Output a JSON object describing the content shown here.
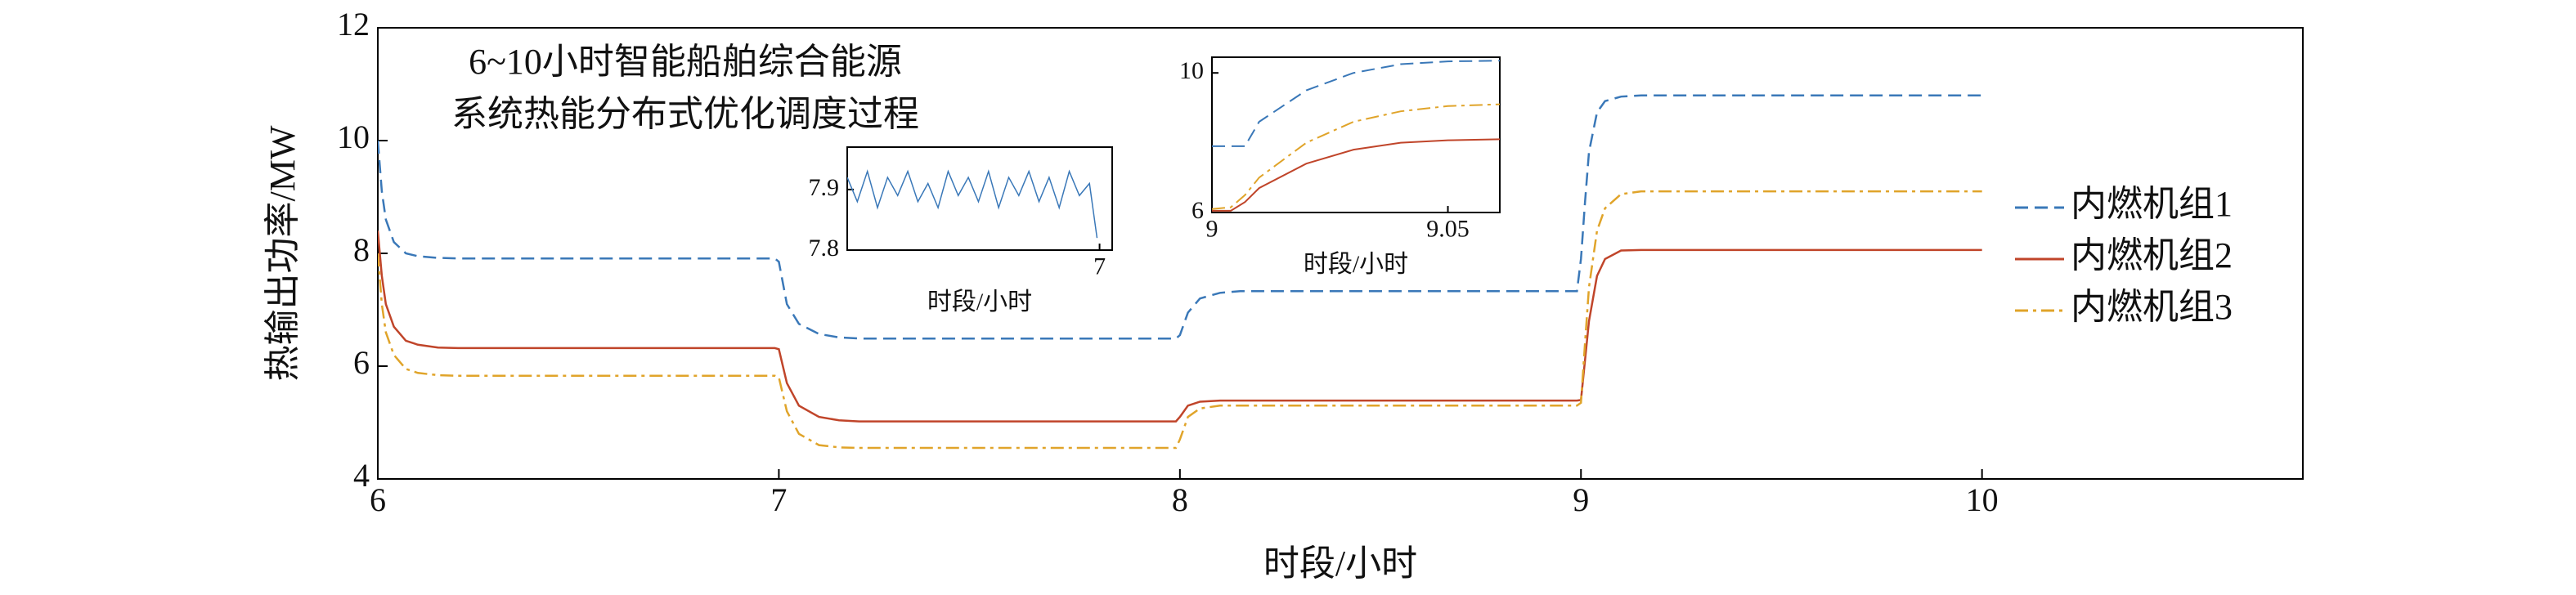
{
  "chart_data": [
    {
      "type": "line",
      "xlabel": "时段/小时",
      "ylabel": "热输出功率/MW",
      "annotations": [
        "6~10小时智能船舶综合能源",
        "系统热能分布式优化调度过程"
      ],
      "xlim": [
        6,
        10.8
      ],
      "ylim": [
        4,
        12
      ],
      "xticks": [
        6,
        7,
        8,
        9,
        10
      ],
      "yticks": [
        4,
        6,
        8,
        10,
        12
      ],
      "legend": "right",
      "x": [
        6,
        6.01,
        6.02,
        6.04,
        6.07,
        6.1,
        6.15,
        6.2,
        6.99,
        7.0,
        7.02,
        7.05,
        7.1,
        7.15,
        7.2,
        7.99,
        8.0,
        8.02,
        8.05,
        8.1,
        8.15,
        8.99,
        9.0,
        9.01,
        9.02,
        9.04,
        9.06,
        9.1,
        9.15,
        10
      ],
      "series": [
        {
          "name": "内燃机组1",
          "color": "#3a78b8",
          "linestyle": "dashed",
          "values": [
            10.0,
            9.1,
            8.6,
            8.2,
            8.0,
            7.95,
            7.92,
            7.91,
            7.91,
            7.85,
            7.1,
            6.75,
            6.57,
            6.51,
            6.49,
            6.49,
            6.55,
            6.95,
            7.2,
            7.3,
            7.33,
            7.33,
            7.9,
            8.9,
            9.8,
            10.5,
            10.7,
            10.78,
            10.8,
            10.8
          ]
        },
        {
          "name": "内燃机组2",
          "color": "#c0452a",
          "linestyle": "solid",
          "values": [
            8.4,
            7.6,
            7.1,
            6.7,
            6.45,
            6.38,
            6.33,
            6.32,
            6.32,
            6.3,
            5.7,
            5.3,
            5.1,
            5.04,
            5.02,
            5.02,
            5.1,
            5.3,
            5.37,
            5.39,
            5.39,
            5.39,
            5.4,
            6.1,
            6.8,
            7.6,
            7.9,
            8.05,
            8.06,
            8.06
          ]
        },
        {
          "name": "内燃机组3",
          "color": "#e0a42a",
          "linestyle": "dashdot",
          "values": [
            8.0,
            7.1,
            6.6,
            6.2,
            5.95,
            5.88,
            5.84,
            5.83,
            5.83,
            5.8,
            5.2,
            4.8,
            4.6,
            4.56,
            4.55,
            4.55,
            4.7,
            5.1,
            5.25,
            5.3,
            5.3,
            5.3,
            5.35,
            6.4,
            7.4,
            8.4,
            8.8,
            9.05,
            9.1,
            9.1
          ]
        }
      ]
    },
    {
      "type": "line",
      "xlabel": "时段/小时",
      "xlim": [
        6.9,
        7.005
      ],
      "ylim": [
        7.8,
        7.97
      ],
      "xticks": [
        7
      ],
      "yticks": [
        7.8,
        7.9
      ],
      "x": [
        6.9,
        6.904,
        6.908,
        6.912,
        6.916,
        6.92,
        6.924,
        6.928,
        6.932,
        6.936,
        6.94,
        6.944,
        6.948,
        6.952,
        6.956,
        6.96,
        6.964,
        6.968,
        6.972,
        6.976,
        6.98,
        6.984,
        6.988,
        6.992,
        6.996,
        6.999
      ],
      "series": [
        {
          "color": "#3a78b8",
          "linestyle": "solid",
          "values": [
            7.92,
            7.88,
            7.93,
            7.87,
            7.92,
            7.89,
            7.93,
            7.88,
            7.91,
            7.87,
            7.93,
            7.89,
            7.92,
            7.88,
            7.93,
            7.87,
            7.92,
            7.89,
            7.93,
            7.88,
            7.92,
            7.87,
            7.93,
            7.89,
            7.91,
            7.82
          ]
        }
      ]
    },
    {
      "type": "line",
      "xlabel": "时段/小时",
      "xlim": [
        9,
        9.061
      ],
      "ylim": [
        6,
        10.45
      ],
      "xticks": [
        9,
        9.05
      ],
      "yticks": [
        6,
        10
      ],
      "x": [
        9,
        9.004,
        9.007,
        9.01,
        9.02,
        9.03,
        9.04,
        9.05,
        9.061
      ],
      "series": [
        {
          "color": "#3a78b8",
          "linestyle": "dashed",
          "values": [
            7.9,
            7.9,
            7.9,
            8.6,
            9.5,
            10.0,
            10.25,
            10.33,
            10.35
          ]
        },
        {
          "color": "#c0452a",
          "linestyle": "solid",
          "values": [
            6.05,
            6.05,
            6.3,
            6.7,
            7.4,
            7.8,
            8.0,
            8.07,
            8.1
          ]
        },
        {
          "color": "#e0a42a",
          "linestyle": "dashdot",
          "values": [
            6.1,
            6.15,
            6.5,
            7.0,
            8.0,
            8.6,
            8.9,
            9.05,
            9.1
          ]
        }
      ]
    }
  ]
}
